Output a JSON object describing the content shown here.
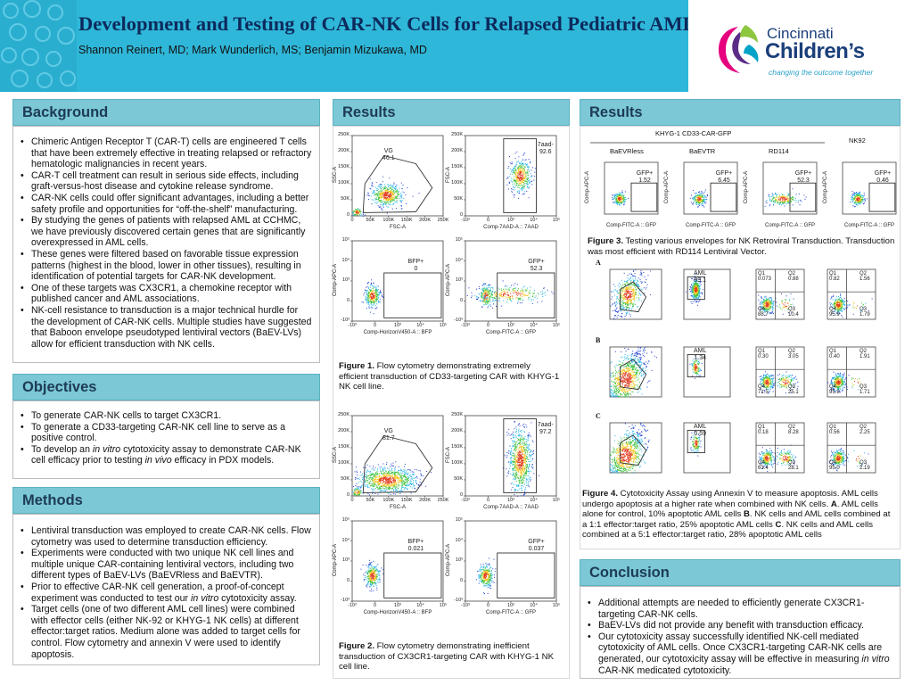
{
  "header": {
    "title": "Development and Testing of CAR-NK Cells for Relapsed Pediatric AML",
    "authors": "Shannon Reinert, MD; Mark Wunderlich, MS; Benjamin Mizukawa, MD",
    "logo": {
      "name_line1": "Cincinnati",
      "name_line2": "Children’s",
      "tagline": "changing the outcome together",
      "colors": [
        "#e6007e",
        "#8dc63f",
        "#00a3c7",
        "#5b2c86"
      ]
    },
    "colors": {
      "banner": "#2fb7d9",
      "title": "#0d2a5c",
      "section": "#7cc8d6"
    }
  },
  "background": {
    "heading": "Background",
    "items": [
      "Chimeric Antigen Receptor T (CAR-T) cells are engineered T cells that have been extremely effective in treating relapsed or refractory hematologic malignancies in recent years.",
      "CAR-T cell treatment can result in serious side effects, including graft-versus-host disease and cytokine release syndrome.",
      "CAR-NK cells could offer significant advantages, including a better safety profile and opportunities for “off-the-shelf” manufacturing.",
      "By studying the genes of patients with relapsed AML at CCHMC, we have previously discovered certain genes that are significantly overexpressed in AML cells.",
      "These genes were filtered based on favorable tissue expression patterns (highest in the blood, lower in other tissues), resulting in identification of potential targets for CAR-NK development.",
      "One of these targets was CX3CR1, a chemokine receptor with published cancer and AML associations.",
      "NK-cell resistance to transduction is a major technical hurdle for the development of CAR-NK cells. Multiple studies have suggested that Baboon envelope pseudotyped lentiviral vectors (BaEV-LVs) allow for efficient transduction with NK cells."
    ]
  },
  "objectives": {
    "heading": "Objectives",
    "items": [
      {
        "parts": [
          "To generate CAR-NK cells to target CX3CR1."
        ]
      },
      {
        "parts": [
          "To generate a CD33-targeting CAR-NK cell line to serve as a positive control."
        ]
      },
      {
        "parts": [
          "To develop an ",
          "in vitro",
          " cytotoxicity assay to demonstrate CAR-NK cell efficacy prior to testing ",
          "in vivo",
          " efficacy in PDX models."
        ]
      }
    ]
  },
  "methods": {
    "heading": "Methods",
    "items": [
      {
        "parts": [
          "Lentiviral transduction was employed to create CAR-NK cells. Flow cytometry was used to determine transduction efficiency."
        ]
      },
      {
        "parts": [
          "Experiments were conducted with two unique NK cell lines and multiple unique CAR-containing lentiviral vectors, including two different types of BaEV-LVs (BaEVRless and BaEVTR)."
        ]
      },
      {
        "parts": [
          "Prior to effective CAR-NK cell generation, a proof-of-concept experiment was conducted to test our ",
          "in vitro",
          " cytotoxicity assay."
        ]
      },
      {
        "parts": [
          "Target cells (one of two different AML cell lines) were combined with effector cells (either NK-92 or KHYG-1 NK cells) at different effector:target ratios. Medium alone was added to target cells for control. Flow cytometry and annexin V were used to identify apoptosis."
        ]
      }
    ]
  },
  "results1": {
    "heading": "Results",
    "fig1": {
      "plots": [
        {
          "ylabel": "SSC-A",
          "xlabel": "FSC-A",
          "gate_label": "VG",
          "gate_value": "46.1",
          "yticks": [
            "250K",
            "200K",
            "150K",
            "100K",
            "50K",
            "0"
          ],
          "xticks": [
            "0",
            "50K",
            "100K",
            "150K",
            "200K",
            "250K"
          ]
        },
        {
          "ylabel": "FSC-A",
          "xlabel": "Comp-7AAD-A :: 7AAD",
          "gate_label": "7aad-",
          "gate_value": "92.6",
          "yticks": [
            "250K",
            "200K",
            "150K",
            "100K",
            "50K",
            "0"
          ],
          "xticks": [
            "-10³",
            "0",
            "10³",
            "10⁴",
            "10⁵"
          ]
        },
        {
          "ylabel": "Comp-APC-A",
          "xlabel": "Comp-HorizonV450-A :: BFP",
          "gate_label": "BFP+",
          "gate_value": "0",
          "yticks": [
            "10⁵",
            "10⁴",
            "10³",
            "0",
            "-10³"
          ],
          "xticks": [
            "-10³",
            "0",
            "10³",
            "10⁴",
            "10⁵"
          ]
        },
        {
          "ylabel": "Comp-APC-A",
          "xlabel": "Comp-FITC-A :: GFP",
          "gate_label": "GFP+",
          "gate_value": "52.3",
          "yticks": [
            "10⁵",
            "10⁴",
            "10³",
            "0",
            "-10³"
          ],
          "xticks": [
            "-10³",
            "0",
            "10³",
            "10⁴",
            "10⁵"
          ]
        }
      ],
      "caption_label": "Figure 1.",
      "caption_text": " Flow cytometry demonstrating extremely efficient transduction of CD33-targeting CAR with KHYG-1 NK cell line."
    },
    "fig2": {
      "plots": [
        {
          "ylabel": "SSC-A",
          "xlabel": "FSC-A",
          "gate_label": "VG",
          "gate_value": "81.7",
          "yticks": [
            "250K",
            "200K",
            "150K",
            "100K",
            "50K",
            "0"
          ],
          "xticks": [
            "0",
            "50K",
            "100K",
            "150K",
            "200K",
            "250K"
          ]
        },
        {
          "ylabel": "FSC-A",
          "xlabel": "Comp-7AAD-A :: 7AAD",
          "gate_label": "7aad-",
          "gate_value": "97.2",
          "yticks": [
            "250K",
            "200K",
            "150K",
            "100K",
            "50K",
            "0"
          ],
          "xticks": [
            "-10³",
            "0",
            "10³",
            "10⁴",
            "10⁵"
          ]
        },
        {
          "ylabel": "Comp-APC-A",
          "xlabel": "Comp-HorizonV450-A :: BFP",
          "gate_label": "BFP+",
          "gate_value": "0.021",
          "yticks": [
            "10⁵",
            "10⁴",
            "10³",
            "0",
            "-10³"
          ],
          "xticks": [
            "-10³",
            "0",
            "10³",
            "10⁴",
            "10⁵"
          ]
        },
        {
          "ylabel": "Comp-APC-A",
          "xlabel": "Comp-FITC-A :: GFP",
          "gate_label": "GFP+",
          "gate_value": "0.037",
          "yticks": [
            "10⁵",
            "10⁴",
            "10³",
            "0",
            "-10³"
          ],
          "xticks": [
            "-10³",
            "0",
            "10³",
            "10⁴",
            "10⁵"
          ]
        }
      ],
      "caption_label": "Figure 2.",
      "caption_text": " Flow cytometry demonstrating inefficient transduction of CX3CR1-targeting CAR with KHYG-1 NK cell line."
    }
  },
  "results2": {
    "heading": "Results",
    "fig3": {
      "group_title": "KHYG-1 CD33-CAR-GFP",
      "nk92_title": "NK92",
      "panels": [
        {
          "label": "BaEVRless",
          "gate": "GFP+",
          "value": "1.52"
        },
        {
          "label": "BaEVTR",
          "gate": "GFP+",
          "value": "6.45"
        },
        {
          "label": "RD114",
          "gate": "GFP+",
          "value": "52.3"
        },
        {
          "label": "",
          "gate": "GFP+",
          "value": "0.46"
        }
      ],
      "ylabel": "Comp-APC-A",
      "xlabel": "Comp-FITC-A :: GFP",
      "caption_label": "Figure 3.",
      "caption_text": " Testing various envelopes for NK Retroviral Transduction. Transduction was most efficient with RD114 Lentiviral Vector."
    },
    "fig4": {
      "rows": [
        {
          "letter": "A",
          "aml": "AML",
          "aml_value": "89.1",
          "q": [
            {
              "q1": "Q1",
              "v1": "0.073",
              "q2": "Q2",
              "v2": "0.88",
              "q4": "Q4",
              "v4": "88.7",
              "q3": "Q3",
              "v3": "10.4"
            },
            {
              "q1": "Q1",
              "v1": "0.82",
              "q2": "Q2",
              "v2": "1.56",
              "q4": "Q4",
              "v4": "95.9",
              "q3": "Q3",
              "v3": "1.79"
            }
          ],
          "gate_value": "21.5"
        },
        {
          "letter": "B",
          "aml": "AML",
          "aml_value": "1.34",
          "q": [
            {
              "q1": "Q1",
              "v1": "0.30",
              "q2": "Q2",
              "v2": "3.05",
              "q4": "Q4",
              "v4": "71.5",
              "q3": "Q3",
              "v3": "25.1"
            },
            {
              "q1": "Q1",
              "v1": "0.40",
              "q2": "Q2",
              "v2": "1.91",
              "q4": "Q4",
              "v4": "95.9",
              "q3": "Q3",
              "v3": "1.71"
            }
          ],
          "gate_value": ""
        },
        {
          "letter": "C",
          "aml": "AML",
          "aml_value": "0.59",
          "q": [
            {
              "q1": "Q1",
              "v1": "0.18",
              "q2": "Q2",
              "v2": "8.28",
              "q4": "Q4",
              "v4": "63.4",
              "q3": "Q3",
              "v3": "28.1"
            },
            {
              "q1": "Q1",
              "v1": "0.56",
              "q2": "Q2",
              "v2": "2.25",
              "q4": "Q4",
              "v4": "95.0",
              "q3": "Q3",
              "v3": "2.19"
            }
          ],
          "gate_value": ""
        }
      ],
      "caption_label": "Figure 4.",
      "caption_parts": [
        {
          "t": " Cytotoxicity Assay using Annexin V to measure apoptosis. AML cells undergo apoptosis at a higher rate when combined with NK cells. ",
          "b": false
        },
        {
          "t": "A",
          "b": true
        },
        {
          "t": ". AML cells alone for control, 10% apoptotic AML cells ",
          "b": false
        },
        {
          "t": "B",
          "b": true
        },
        {
          "t": ". NK cells and AML cells combined at a 1:1 effector:target ratio, 25% apoptotic AML cells ",
          "b": false
        },
        {
          "t": "C",
          "b": true
        },
        {
          "t": ". NK cells and AML cells combined at a 5:1 effector:target ratio, 28% apoptotic AML cells",
          "b": false
        }
      ]
    }
  },
  "conclusion": {
    "heading": "Conclusion",
    "items": [
      {
        "parts": [
          "Additional attempts are needed to efficiently generate CX3CR1-targeting CAR-NK cells."
        ]
      },
      {
        "parts": [
          "BaEV-LVs did not provide any benefit with transduction efficacy."
        ]
      },
      {
        "parts": [
          "Our cytotoxicity assay successfully identified NK-cell mediated cytotoxicity of AML cells. Once CX3CR1-targeting CAR-NK cells are generated, our cytotoxicity assay will be effective in measuring ",
          "in vitro",
          " CAR-NK medicated cytotoxicity."
        ]
      }
    ]
  }
}
